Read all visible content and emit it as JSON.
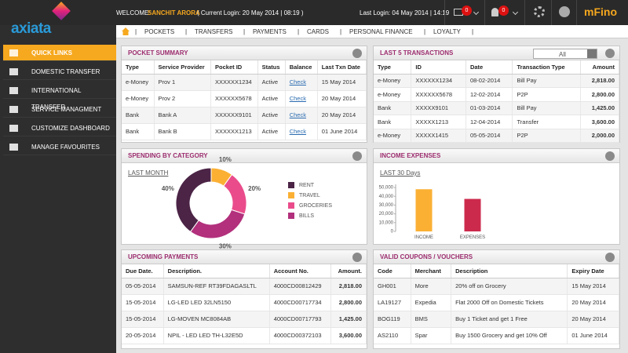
{
  "header": {
    "welcome": "WELCOME:",
    "user": "SANCHIT ARORA",
    "current_login": "( Current Login: 20 May 2014 | 08:19 )",
    "last_login": "Last Login: 04 May 2014 | 14:19",
    "mail_badge": "0",
    "alert_badge": "0",
    "brand": "mFino",
    "logo": "axiata"
  },
  "sidebar": [
    "QUICK LINKS",
    "DOMESTIC TRANSFER",
    "INTERNATIONAL TRANSFER",
    "SERVICE MANAGMENT",
    "CUSTOMIZE DASHBOARD",
    "MANAGE FAVOURITES"
  ],
  "nav": [
    "POCKETS",
    "TRANSFERS",
    "PAYMENTS",
    "CARDS",
    "PERSONAL FINANCE",
    "LOYALTY"
  ],
  "pocket_summary": {
    "title": "POCKET SUMMARY",
    "columns": [
      "Type",
      "Service Provider",
      "Pocket ID",
      "Status",
      "Balance",
      "Last Txn Date"
    ],
    "rows": [
      [
        "e-Money",
        "Prov 1",
        "XXXXXX1234",
        "Active",
        "Check",
        "15 May 2014"
      ],
      [
        "e-Money",
        "Prov 2",
        "XXXXXX5678",
        "Active",
        "Check",
        "20 May 2014"
      ],
      [
        "Bank",
        "Bank A",
        "XXXXXX9101",
        "Active",
        "Check",
        "20 May 2014"
      ],
      [
        "Bank",
        "Bank B",
        "XXXXXX1213",
        "Active",
        "Check",
        "01 June 2014"
      ]
    ]
  },
  "transactions": {
    "title": "LAST 5 TRANSACTIONS",
    "filter": "All",
    "columns": [
      "Type",
      "ID",
      "Date",
      "Transaction Type",
      "Amount"
    ],
    "rows": [
      [
        "e-Money",
        "XXXXXX1234",
        "08-02-2014",
        "Bill Pay",
        "2,818.00"
      ],
      [
        "e-Money",
        "XXXXXX5678",
        "12-02-2014",
        "P2P",
        "2,800.00"
      ],
      [
        "Bank",
        "XXXXX9101",
        "01-03-2014",
        "Bill Pay",
        "1,425.00"
      ],
      [
        "Bank",
        "XXXXX1213",
        "12-04-2014",
        "Transfer",
        "3,600.00"
      ],
      [
        "e-Money",
        "XXXXX1415",
        "05-05-2014",
        "P2P",
        "2,000.00"
      ]
    ]
  },
  "upcoming_payments": {
    "title": "UPCOMING PAYMENTS",
    "columns": [
      "Due Date.",
      "Description.",
      "Account  No.",
      "Amount."
    ],
    "rows": [
      [
        "05-05-2014",
        "SAMSUN-REF RT39FDAGASLTL",
        "4000CD00812429",
        "2,818.00"
      ],
      [
        "15-05-2014",
        "LG-LED LED 32LN5150",
        "4000CD00717734",
        "2,800.00"
      ],
      [
        "15-05-2014",
        "LG-MOVEN MC8084AB",
        "4000CD00717793",
        "1,425.00"
      ],
      [
        "20-05-2014",
        "NPIL - LED LED TH-L32E5D",
        "4000CD00372103",
        "3,600.00"
      ]
    ]
  },
  "coupons": {
    "title": "VALID COUPONS / VOUCHERS",
    "columns": [
      "Code",
      "Merchant",
      "Description",
      "Expiry Date"
    ],
    "rows": [
      [
        "GH001",
        "More",
        "20% off on Grocery",
        "15 May 2014"
      ],
      [
        "LA19127",
        "Expedia",
        "Flat 2000 Off on Domestic Tickets",
        "20 May 2014"
      ],
      [
        "BOG119",
        "BMS",
        "Buy 1 Ticket and get 1 Free",
        "20 May 2014"
      ],
      [
        "AS2110",
        "Spar",
        "Buy 1500 Grocery and get 10% Off",
        "01 June 2014"
      ]
    ]
  },
  "chart_data": [
    {
      "type": "pie",
      "title": "SPENDING BY CATEGORY",
      "subtitle": "LAST MONTH",
      "categories": [
        "RENT",
        "TRAVEL",
        "GROCERIES",
        "BILLS"
      ],
      "values": [
        40,
        10,
        20,
        30
      ],
      "value_labels": [
        "40%",
        "10%",
        "20%",
        "30%"
      ],
      "colors": [
        "#4b2446",
        "#fbb034",
        "#ea4c8b",
        "#b2307c"
      ]
    },
    {
      "type": "bar",
      "title": "INCOME EXPENSES",
      "subtitle": "LAST 30 Days",
      "categories": [
        "INCOME",
        "EXPENSES"
      ],
      "values": [
        48000,
        37000
      ],
      "colors": [
        "#fbb034",
        "#cc2a4c"
      ],
      "ylim": [
        0,
        50000
      ],
      "yticks": [
        0,
        {
          "value": 10000,
          "label": "10,000"
        },
        {
          "value": 20000,
          "label": "20,000"
        },
        {
          "value": 30000,
          "label": "30,000"
        },
        {
          "value": 40000,
          "label": "40,000"
        },
        {
          "value": 50000,
          "label": "50,000"
        }
      ],
      "grid": false
    }
  ]
}
